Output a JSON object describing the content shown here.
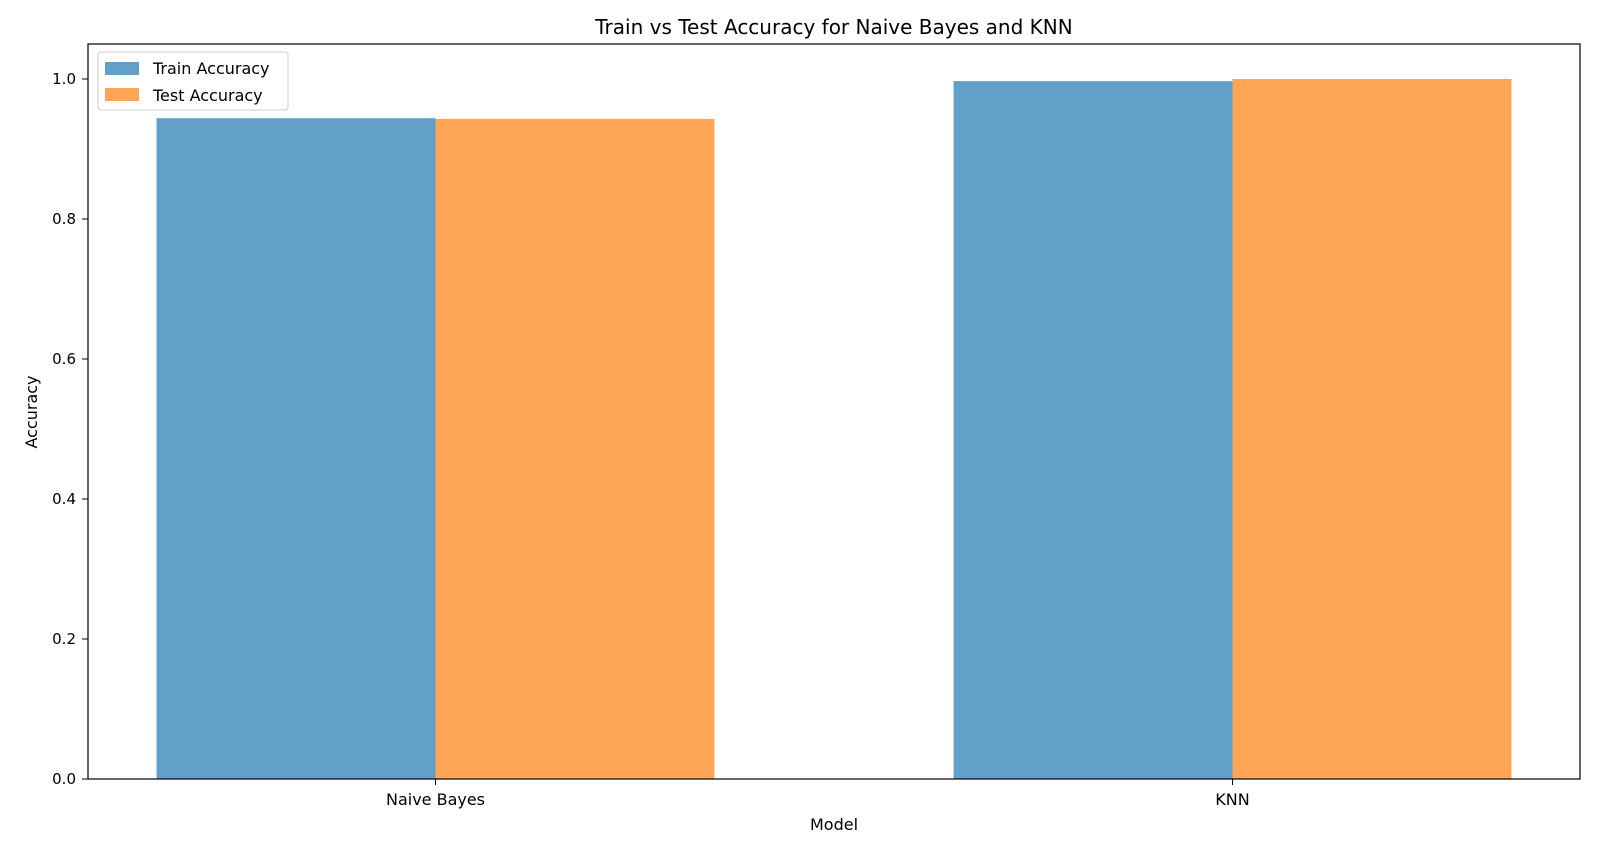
{
  "chart_data": {
    "type": "bar",
    "title": "Train vs Test Accuracy for Naive Bayes and KNN",
    "xlabel": "Model",
    "ylabel": "Accuracy",
    "categories": [
      "Naive Bayes",
      "KNN"
    ],
    "series": [
      {
        "name": "Train Accuracy",
        "values": [
          0.944,
          0.997
        ],
        "color": "#1f77b4",
        "opacity": 0.7
      },
      {
        "name": "Test Accuracy",
        "values": [
          0.943,
          1.0
        ],
        "color": "#ff7f0e",
        "opacity": 0.7
      }
    ],
    "ylim": [
      0,
      1.05
    ],
    "yticks": [
      0.0,
      0.2,
      0.4,
      0.6,
      0.8,
      1.0
    ],
    "ytick_labels": [
      "0.0",
      "0.2",
      "0.4",
      "0.6",
      "0.8",
      "1.0"
    ],
    "legend_position": "top-left",
    "grid": false
  }
}
